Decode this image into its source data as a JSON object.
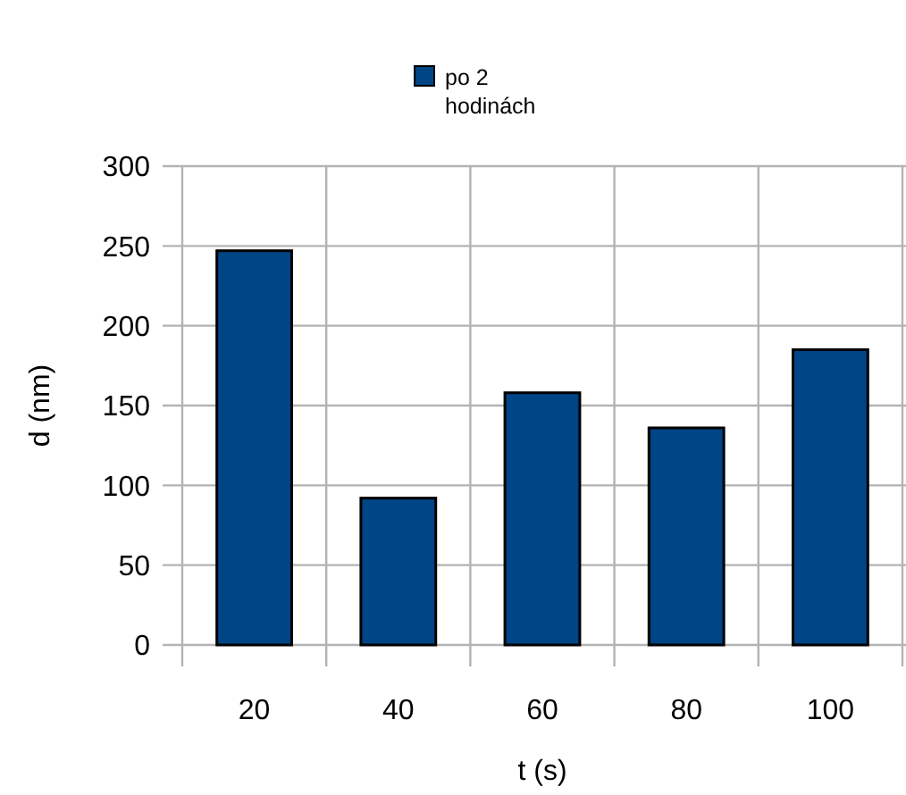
{
  "chart_data": {
    "type": "bar",
    "xlabel": "t (s)",
    "ylabel": "d (nm)",
    "categories": [
      "20",
      "40",
      "60",
      "80",
      "100"
    ],
    "series": [
      {
        "name": "po 2 hodinách",
        "color": "#004586",
        "values": [
          247,
          92,
          158,
          136,
          185
        ]
      }
    ],
    "ylim": [
      0,
      300
    ],
    "yticks": [
      0,
      50,
      100,
      150,
      200,
      250,
      300
    ],
    "grid": true,
    "legend": "top"
  }
}
